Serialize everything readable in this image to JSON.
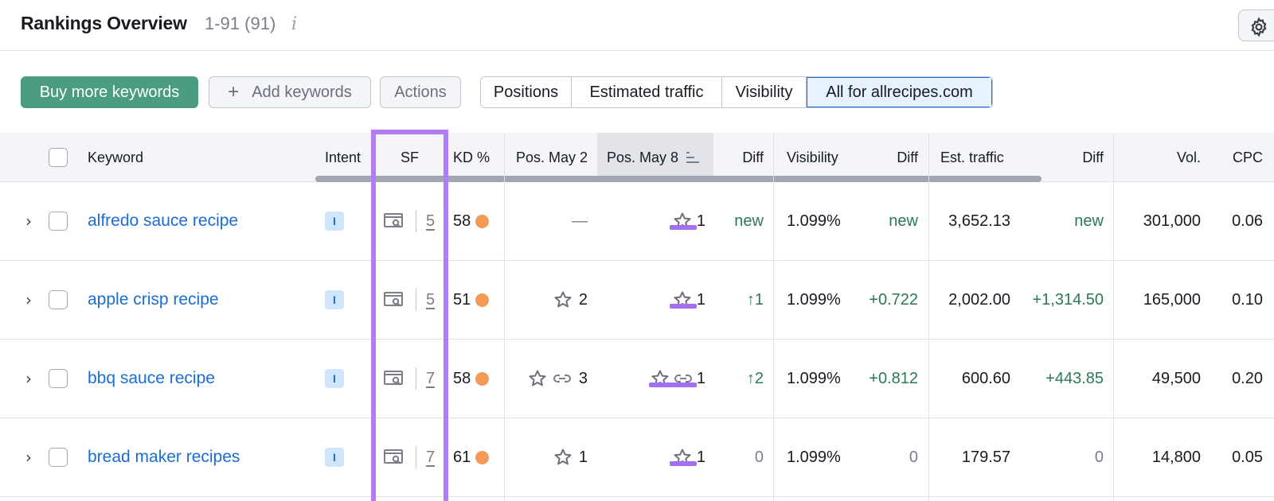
{
  "header": {
    "title": "Rankings Overview",
    "range": "1-91 (91)",
    "info_icon": "i"
  },
  "toolbar": {
    "buy_label": "Buy more keywords",
    "add_label": "Add keywords",
    "add_icon": "+",
    "actions_label": "Actions",
    "segments": [
      "Positions",
      "Estimated traffic",
      "Visibility",
      "All for allrecipes.com"
    ],
    "active_segment": "All for allrecipes.com"
  },
  "table": {
    "columns": {
      "keyword": "Keyword",
      "intent": "Intent",
      "sf": "SF",
      "kd": "KD %",
      "pos_prev": "Pos. May 2",
      "pos_curr": "Pos. May 8",
      "diff": "Diff",
      "visibility": "Visibility",
      "vis_diff": "Diff",
      "traffic": "Est. traffic",
      "traffic_diff": "Diff",
      "volume": "Vol.",
      "cpc": "CPC"
    },
    "rows": [
      {
        "keyword": "alfredo sauce recipe",
        "intent": "I",
        "sf": "5",
        "kd": "58",
        "pos_prev": "—",
        "pos_prev_star": false,
        "pos_prev_link": false,
        "pos_curr": "1",
        "pos_curr_link": false,
        "diff": "new",
        "visibility": "1.099%",
        "vis_diff": "new",
        "traffic": "3,652.13",
        "traffic_diff": "new",
        "volume": "301,000",
        "cpc": "0.06"
      },
      {
        "keyword": "apple crisp recipe",
        "intent": "I",
        "sf": "5",
        "kd": "51",
        "pos_prev": "2",
        "pos_prev_star": true,
        "pos_prev_link": false,
        "pos_curr": "1",
        "pos_curr_link": false,
        "diff": "↑1",
        "visibility": "1.099%",
        "vis_diff": "+0.722",
        "traffic": "2,002.00",
        "traffic_diff": "+1,314.50",
        "volume": "165,000",
        "cpc": "0.10"
      },
      {
        "keyword": "bbq sauce recipe",
        "intent": "I",
        "sf": "7",
        "kd": "58",
        "pos_prev": "3",
        "pos_prev_star": true,
        "pos_prev_link": true,
        "pos_curr": "1",
        "pos_curr_link": true,
        "diff": "↑2",
        "visibility": "1.099%",
        "vis_diff": "+0.812",
        "traffic": "600.60",
        "traffic_diff": "+443.85",
        "volume": "49,500",
        "cpc": "0.20"
      },
      {
        "keyword": "bread maker recipes",
        "intent": "I",
        "sf": "7",
        "kd": "61",
        "pos_prev": "1",
        "pos_prev_star": true,
        "pos_prev_link": false,
        "pos_curr": "1",
        "pos_curr_link": false,
        "diff": "0",
        "visibility": "1.099%",
        "vis_diff": "0",
        "traffic": "179.57",
        "traffic_diff": "0",
        "volume": "14,800",
        "cpc": "0.05"
      }
    ]
  },
  "colors": {
    "primary_green": "#4a9e7f",
    "link_blue": "#1b6dd6",
    "positive_green": "#2c7a53",
    "kd_orange": "#f39a57",
    "highlight_purple": "#b17cf5"
  },
  "icons": {
    "settings": "gear-icon",
    "expand": "chevron-right-icon",
    "serp": "serp-feature-icon",
    "star": "star-icon",
    "link": "link-icon",
    "sort": "sort-descending-icon"
  }
}
